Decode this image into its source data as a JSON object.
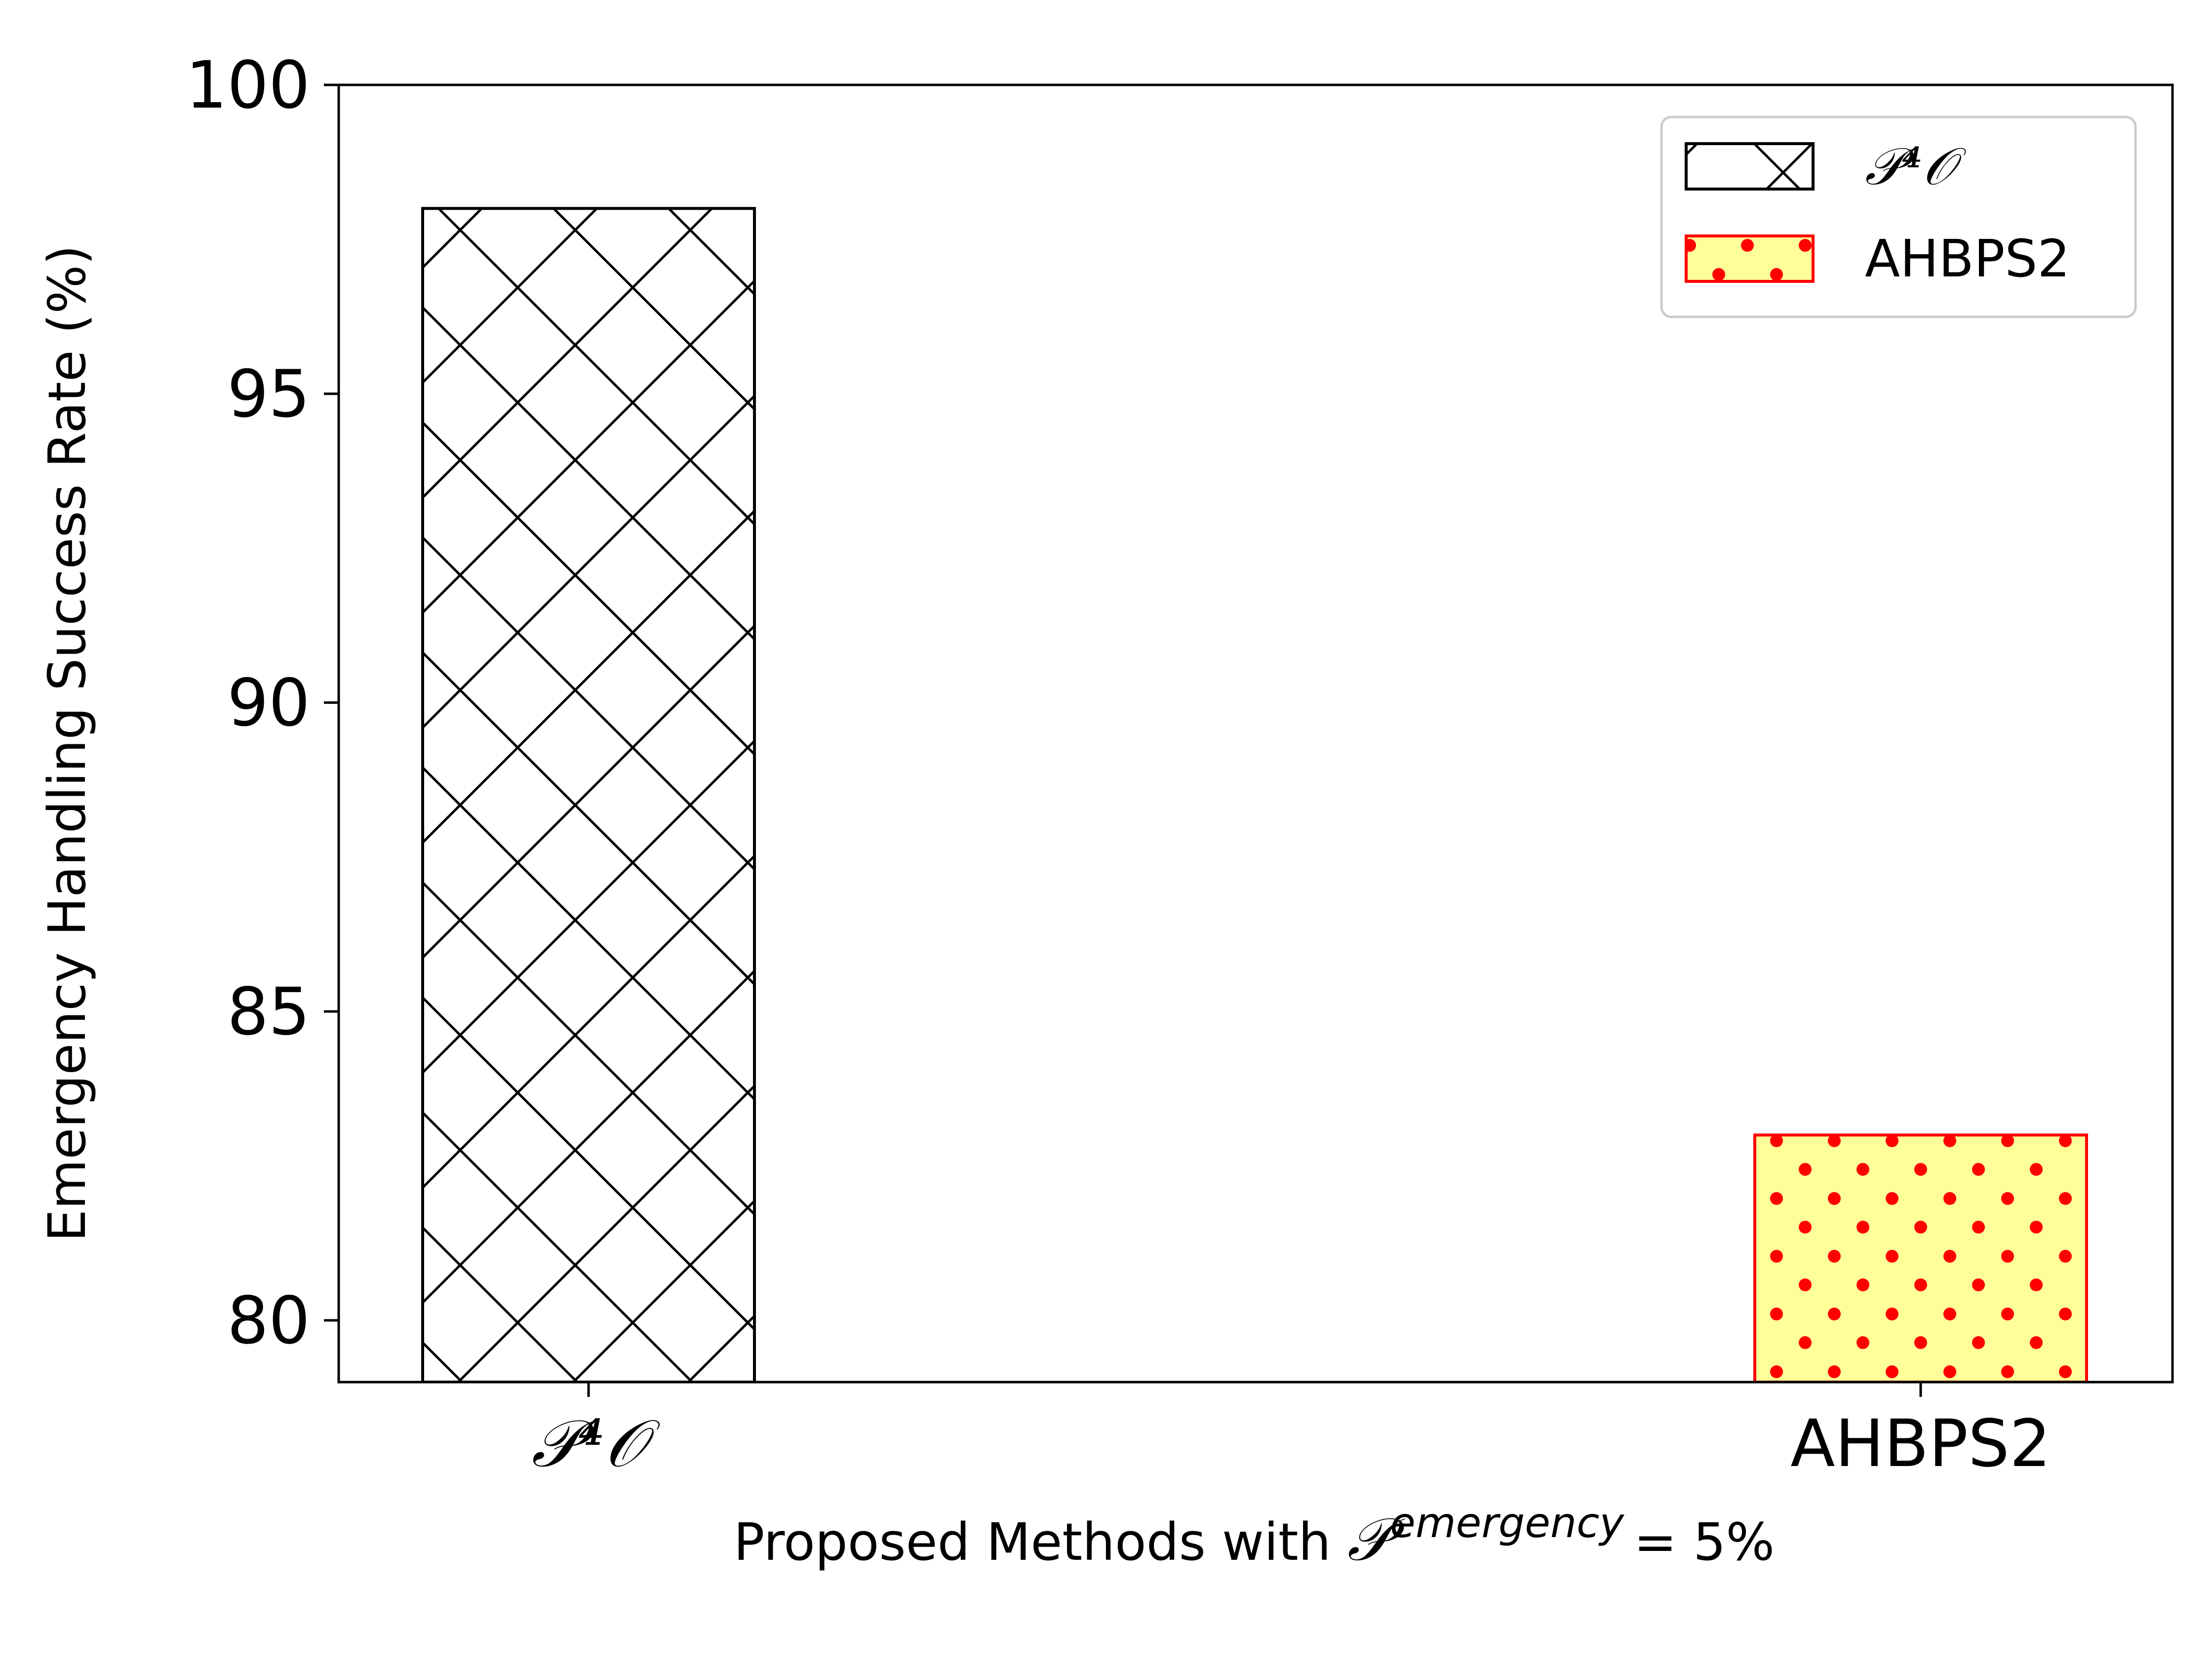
{
  "chart_data": {
    "type": "bar",
    "categories": [
      "𝒫⁴𝒪",
      "AHBPS2"
    ],
    "values": [
      98,
      83
    ],
    "series": [
      {
        "name": "𝒫⁴𝒪",
        "values": [
          98,
          null
        ],
        "color": "#ffffff",
        "edgecolor": "#000000",
        "hatch": "crosshatch"
      },
      {
        "name": "AHBPS2",
        "values": [
          null,
          83
        ],
        "color": "#ffff99",
        "edgecolor": "#ff0000",
        "hatch": "dots"
      }
    ],
    "xlabel_prefix": "Proposed Methods with ",
    "xlabel_math_base": "𝒫",
    "xlabel_math_sup": "emergency",
    "xlabel_suffix": "= 5%",
    "ylabel": "Emergency Handling Success Rate (%)",
    "ylim": [
      79,
      100
    ],
    "yticks": [
      80,
      85,
      90,
      95,
      100
    ],
    "legend_position": "top-right",
    "grid": false
  }
}
